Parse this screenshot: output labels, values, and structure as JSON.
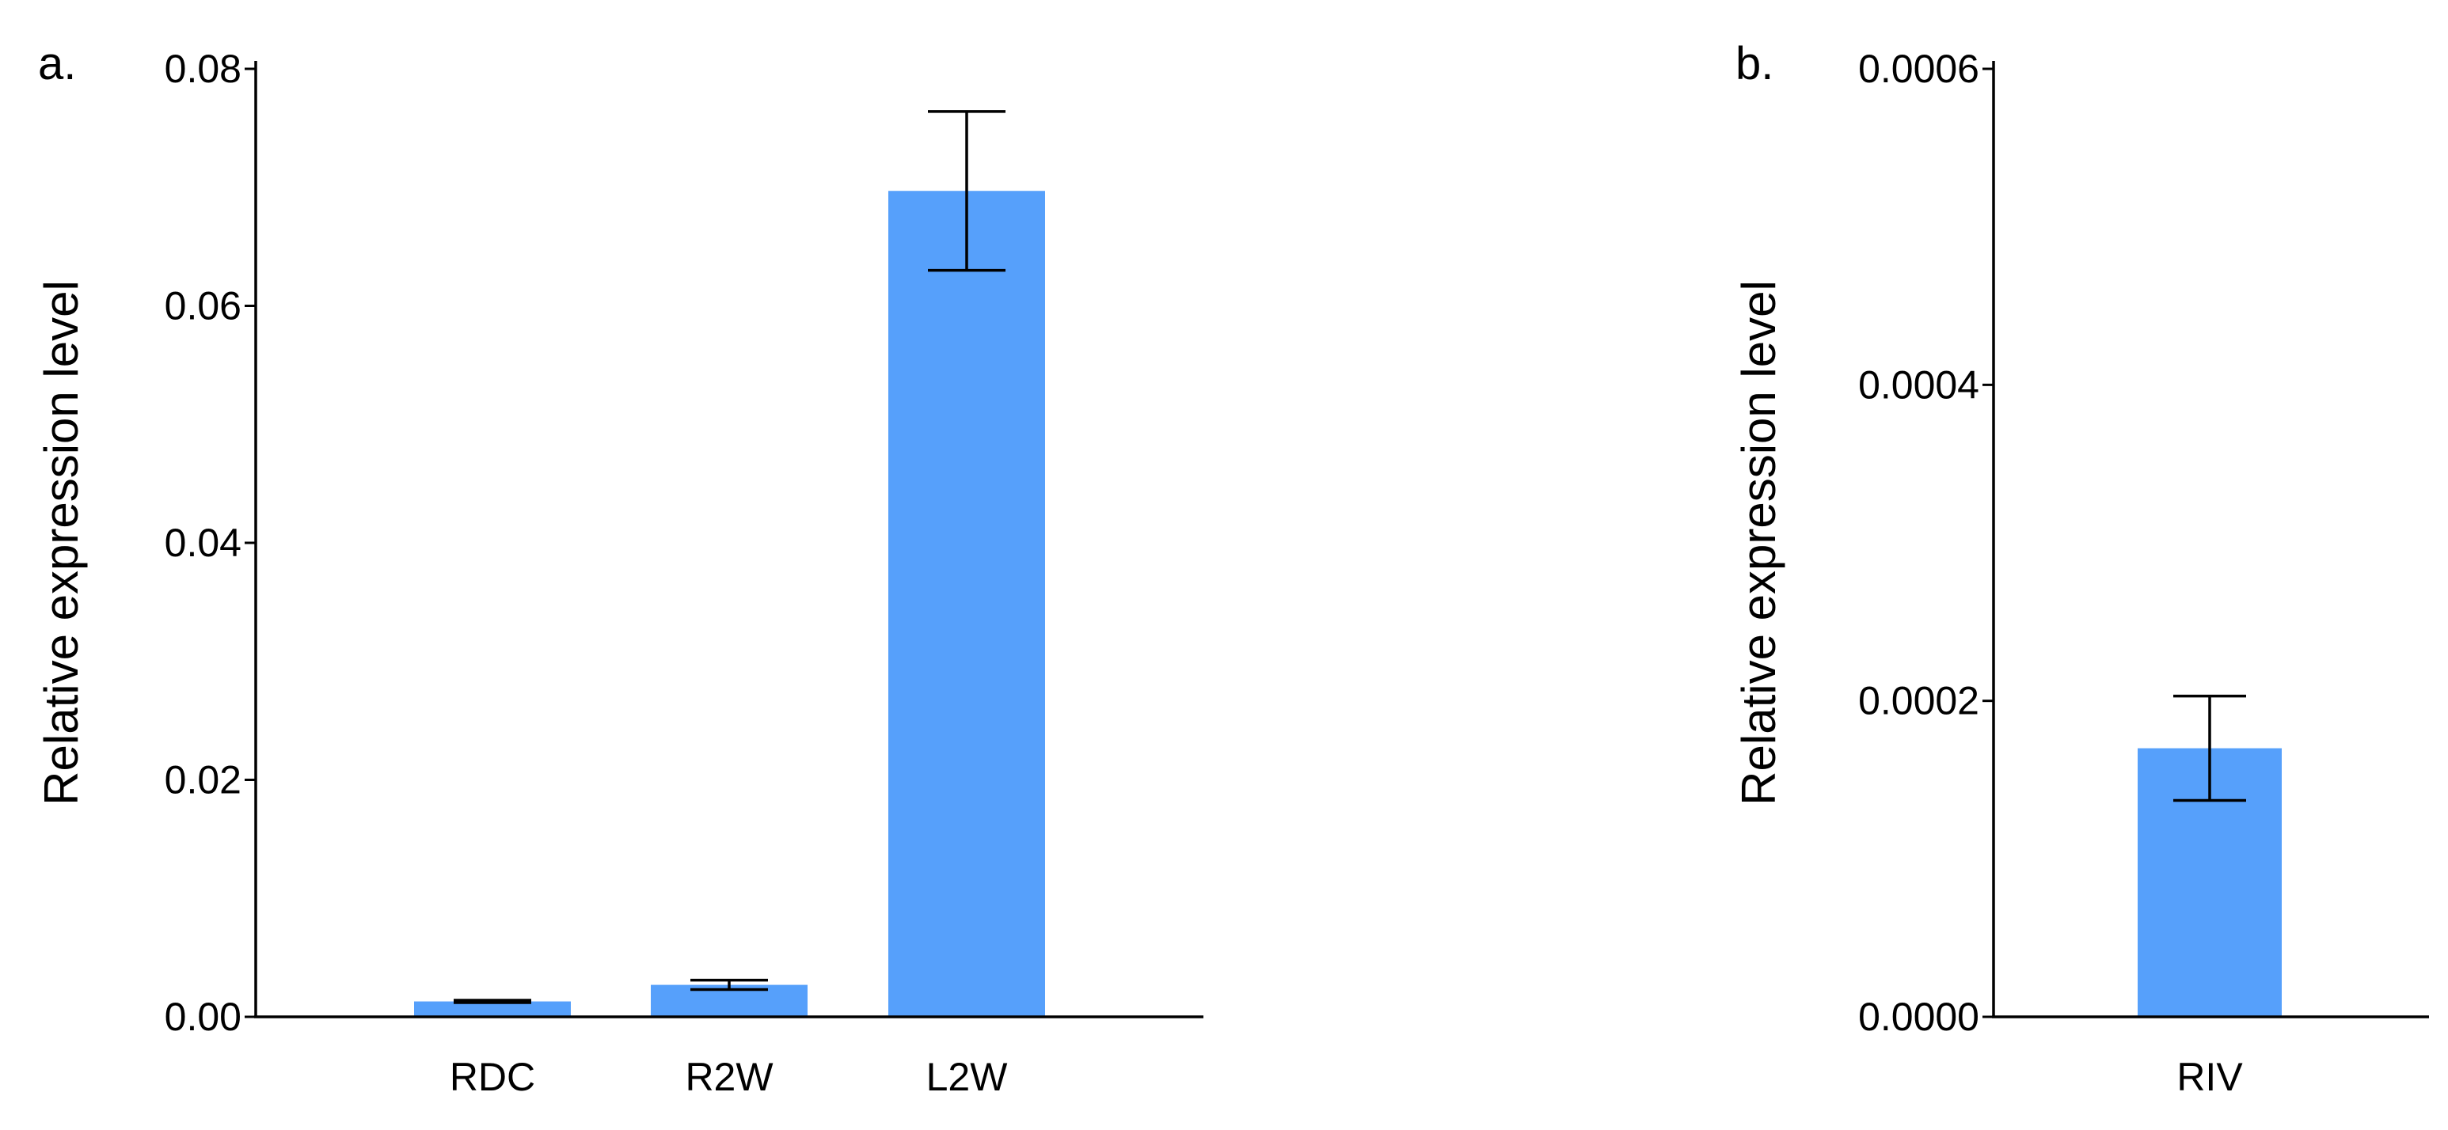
{
  "chart_data": [
    {
      "panel_label": "a.",
      "type": "bar",
      "categories": [
        "RDC",
        "R2W",
        "L2W"
      ],
      "values": [
        0.0013,
        0.0027,
        0.0697
      ],
      "errors": [
        0.0001,
        0.0004,
        0.0067
      ],
      "ylabel": "Relative expression level",
      "ylim": [
        0,
        0.08
      ],
      "yticks": [
        "0.00",
        "0.02",
        "0.04",
        "0.06",
        "0.08"
      ],
      "bar_color": "#56a0fb",
      "grid": false
    },
    {
      "panel_label": "b.",
      "type": "bar",
      "categories": [
        "RIV"
      ],
      "values": [
        0.00017
      ],
      "errors": [
        3.3e-05
      ],
      "ylabel": "Relative expression level",
      "ylim": [
        0,
        0.0006
      ],
      "yticks": [
        "0.0000",
        "0.0002",
        "0.0004",
        "0.0006"
      ],
      "bar_color": "#56a0fb",
      "grid": false
    }
  ]
}
